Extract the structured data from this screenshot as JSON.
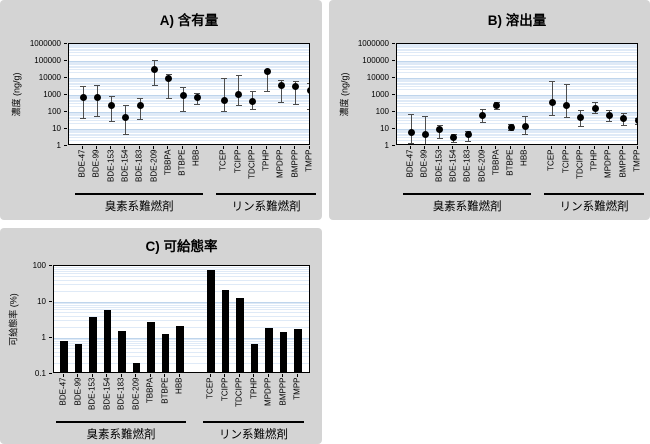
{
  "figure": {
    "background": "#ffffff",
    "panel_background": "#d4d4d4",
    "group_labels": [
      "臭素系難燃剤",
      "リン系難燃剤"
    ]
  },
  "colors": {
    "plot_background": "#ffffff",
    "grid_minor": "#dfeaf7",
    "grid_major": "#bfd5ec",
    "marker": "#000000",
    "error_bar": "#4d4d4d",
    "bar": "#000000",
    "plot_border": "#000000"
  },
  "categories": [
    "BDE-47",
    "BDE-99",
    "BDE-153",
    "BDE-154",
    "BDE-183",
    "BDE-209",
    "TBBPA",
    "BTBPE",
    "HBB",
    "TCEP",
    "TCIPP",
    "TDCIPP",
    "TPHP",
    "MPDPP",
    "BMPPP",
    "TMPP"
  ],
  "groups": [
    {
      "label": "臭素系難燃剤",
      "from": 0,
      "to": 8
    },
    {
      "label": "リン系難燃剤",
      "from": 9,
      "to": 15
    }
  ],
  "chart_data": [
    {
      "id": "A",
      "type": "scatter",
      "title": "A) 含有量",
      "ylabel": "濃度 (ng/g)",
      "ylim": [
        1,
        1000000
      ],
      "yscale": "log",
      "grid": true,
      "yticks": [
        1000000,
        100000,
        10000,
        1000,
        100,
        10,
        1
      ],
      "categories": [
        "BDE-47",
        "BDE-99",
        "BDE-153",
        "BDE-154",
        "BDE-183",
        "BDE-209",
        "TBBPA",
        "BTBPE",
        "HBB",
        "TCEP",
        "TCIPP",
        "TDCIPP",
        "TPHP",
        "MPDPP",
        "BMPPP",
        "TMPP"
      ],
      "values": [
        700,
        700,
        250,
        45,
        250,
        30000,
        9000,
        1000,
        750,
        500,
        1100,
        400,
        24000,
        3500,
        3000,
        1800
      ],
      "err_low": [
        45,
        55,
        30,
        5,
        40,
        4000,
        700,
        110,
        300,
        110,
        250,
        150,
        1800,
        400,
        280,
        160
      ],
      "err_high": [
        3500,
        4000,
        900,
        250,
        700,
        110000,
        18000,
        2800,
        1400,
        10000,
        15000,
        1800,
        30000,
        8000,
        7000,
        5000
      ]
    },
    {
      "id": "B",
      "type": "scatter",
      "title": "B) 溶出量",
      "ylabel": "濃度 (ng/g)",
      "ylim": [
        1,
        1000000
      ],
      "yscale": "log",
      "grid": true,
      "yticks": [
        1000000,
        100000,
        10000,
        1000,
        100,
        10,
        1
      ],
      "categories": [
        "BDE-47",
        "BDE-99",
        "BDE-153",
        "BDE-154",
        "BDE-183",
        "BDE-209",
        "TBBPA",
        "BTBPE",
        "HBB",
        "TCEP",
        "TCIPP",
        "TDCIPP",
        "TPHP",
        "MPDPP",
        "BMPPP",
        "TMPP"
      ],
      "values": [
        6,
        5,
        9,
        3,
        4.5,
        65,
        250,
        13,
        14,
        350,
        250,
        50,
        170,
        60,
        40,
        30
      ],
      "err_low": [
        1.5,
        1.1,
        3,
        1.8,
        2,
        25,
        150,
        9,
        5,
        70,
        50,
        15,
        85,
        28,
        18,
        20
      ],
      "err_high": [
        80,
        55,
        18,
        5,
        8,
        160,
        380,
        19,
        60,
        7000,
        4500,
        140,
        380,
        140,
        85,
        45
      ]
    },
    {
      "id": "C",
      "type": "bar",
      "title": "C) 可給態率",
      "ylabel": "可給態率 (%)",
      "ylim": [
        0.1,
        100
      ],
      "yscale": "log",
      "grid": true,
      "yticks": [
        100,
        10,
        1,
        0.1
      ],
      "categories": [
        "BDE-47",
        "BDE-99",
        "BDE-153",
        "BDE-154",
        "BDE-183",
        "BDE-209",
        "TBBPA",
        "BTBPE",
        "HBB",
        "TCEP",
        "TCIPP",
        "TDCIPP",
        "TPHP",
        "MPDPP",
        "BMPPP",
        "TMPP"
      ],
      "values": [
        0.85,
        0.7,
        3.8,
        6,
        1.6,
        0.2,
        2.8,
        1.3,
        2.1,
        75,
        21,
        13,
        0.7,
        1.9,
        1.45,
        1.75
      ]
    }
  ]
}
